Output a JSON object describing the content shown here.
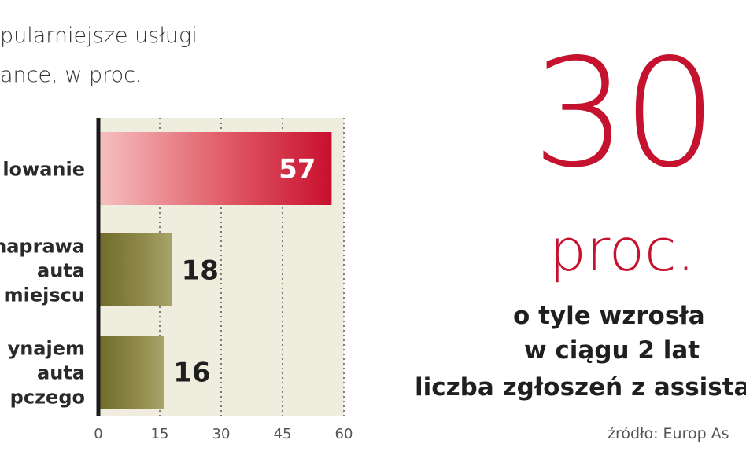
{
  "header": {
    "title_line1": "pularniejsze usługi",
    "title_line2": "ance, w proc."
  },
  "chart_data": {
    "type": "bar",
    "orientation": "horizontal",
    "categories": [
      [
        "lowanie"
      ],
      [
        "naprawa",
        "auta",
        "miejscu"
      ],
      [
        "ynajem",
        "auta",
        "pczego"
      ]
    ],
    "values": [
      57,
      18,
      16
    ],
    "value_labels": [
      "57",
      "18",
      "16"
    ],
    "xlim": [
      0,
      60
    ],
    "xticks": [
      0,
      15,
      30,
      45,
      60
    ],
    "grid": "vertical dotted",
    "colors": {
      "highlight": "#c8102e",
      "highlight_light": "#f4b6b6",
      "default": "#7e7a36",
      "default_light": "#bdb98a",
      "background_band": "#efeede"
    }
  },
  "callout": {
    "number": "30",
    "unit": "proc.",
    "line1": "o tyle wzrosła",
    "line2": "w ciągu 2 lat",
    "line3": "liczba zgłoszeń z assista",
    "color": "#c4122f"
  },
  "footer": {
    "source": "źródło: Europ As"
  }
}
